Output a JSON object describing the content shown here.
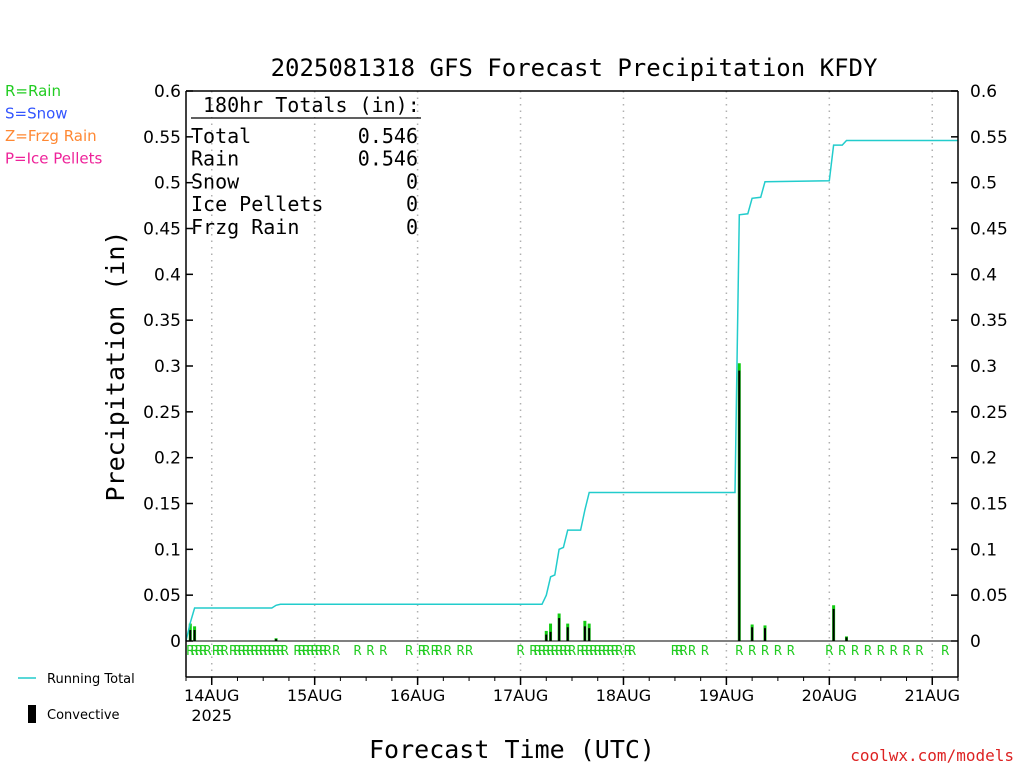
{
  "chart_data": {
    "type": "bar",
    "title": "2025081318 GFS Forecast Precipitation KFDY",
    "xlabel": "Forecast Time (UTC)",
    "ylabel": "Precipitation (in)",
    "ylim": [
      0,
      0.6
    ],
    "y_ticks": [
      "0",
      "0.05",
      "0.1",
      "0.15",
      "0.2",
      "0.25",
      "0.3",
      "0.35",
      "0.4",
      "0.45",
      "0.5",
      "0.55",
      "0.6"
    ],
    "x_ticks": [
      {
        "label": "14AUG",
        "hour": 6
      },
      {
        "label": "15AUG",
        "hour": 30
      },
      {
        "label": "16AUG",
        "hour": 54
      },
      {
        "label": "17AUG",
        "hour": 78
      },
      {
        "label": "18AUG",
        "hour": 102
      },
      {
        "label": "19AUG",
        "hour": 126
      },
      {
        "label": "20AUG",
        "hour": 150
      },
      {
        "label": "21AUG",
        "hour": 174
      }
    ],
    "year_label": "2025",
    "xlim_hours": [
      0,
      180
    ],
    "grid": "vertical dotted at day boundaries",
    "legend": [
      {
        "name": "R=Rain",
        "color": "#22cc22"
      },
      {
        "name": "S=Snow",
        "color": "#3355ff"
      },
      {
        "name": "Z=Frzg Rain",
        "color": "#ff8833"
      },
      {
        "name": "P=Ice Pellets",
        "color": "#ee2299"
      }
    ],
    "line_legend": "Running Total",
    "bar_legend": "Convective",
    "series": [
      {
        "name": "Running Total",
        "color": "#22cccc",
        "points": [
          [
            0,
            0.0
          ],
          [
            1,
            0.02
          ],
          [
            2,
            0.036
          ],
          [
            20,
            0.036
          ],
          [
            21,
            0.039
          ],
          [
            22,
            0.04
          ],
          [
            83,
            0.04
          ],
          [
            84,
            0.05
          ],
          [
            85,
            0.07
          ],
          [
            86,
            0.072
          ],
          [
            87,
            0.1
          ],
          [
            88,
            0.102
          ],
          [
            89,
            0.121
          ],
          [
            92,
            0.121
          ],
          [
            93,
            0.143
          ],
          [
            94,
            0.162
          ],
          [
            128,
            0.162
          ],
          [
            129,
            0.465
          ],
          [
            131,
            0.466
          ],
          [
            132,
            0.483
          ],
          [
            134,
            0.484
          ],
          [
            135,
            0.501
          ],
          [
            150,
            0.502
          ],
          [
            151,
            0.541
          ],
          [
            153,
            0.541
          ],
          [
            154,
            0.546
          ],
          [
            180,
            0.546
          ]
        ]
      },
      {
        "name": "Precipitation",
        "bars": [
          {
            "hour": 1,
            "total": 0.019,
            "conv": 0.012
          },
          {
            "hour": 2,
            "total": 0.016,
            "conv": 0.012
          },
          {
            "hour": 21,
            "total": 0.003,
            "conv": 0.002
          },
          {
            "hour": 84,
            "total": 0.011,
            "conv": 0.007
          },
          {
            "hour": 85,
            "total": 0.019,
            "conv": 0.01
          },
          {
            "hour": 87,
            "total": 0.03,
            "conv": 0.025
          },
          {
            "hour": 89,
            "total": 0.019,
            "conv": 0.015
          },
          {
            "hour": 93,
            "total": 0.022,
            "conv": 0.016
          },
          {
            "hour": 94,
            "total": 0.019,
            "conv": 0.014
          },
          {
            "hour": 129,
            "total": 0.303,
            "conv": 0.295
          },
          {
            "hour": 132,
            "total": 0.018,
            "conv": 0.015
          },
          {
            "hour": 135,
            "total": 0.017,
            "conv": 0.014
          },
          {
            "hour": 151,
            "total": 0.039,
            "conv": 0.035
          },
          {
            "hour": 154,
            "total": 0.005,
            "conv": 0.004
          }
        ]
      }
    ],
    "ptype_marks": {
      "symbol": "R",
      "color": "#22cc22",
      "hours": [
        1,
        2,
        3,
        4,
        5,
        7,
        8,
        9,
        11,
        12,
        13,
        14,
        15,
        16,
        17,
        18,
        19,
        20,
        21,
        22,
        23,
        26,
        27,
        28,
        29,
        30,
        31,
        32,
        33,
        35,
        40,
        43,
        46,
        52,
        55,
        56,
        58,
        59,
        61,
        64,
        66,
        78,
        81,
        82,
        83,
        84,
        85,
        86,
        87,
        88,
        89,
        90,
        92,
        93,
        94,
        95,
        96,
        97,
        98,
        99,
        100,
        101,
        103,
        104,
        114,
        115,
        116,
        118,
        121,
        129,
        132,
        135,
        138,
        141,
        150,
        153,
        156,
        159,
        162,
        165,
        168,
        171,
        177
      ]
    },
    "totals_box": {
      "header": "180hr Totals (in):",
      "rows": [
        {
          "label": "Total",
          "value": "0.546"
        },
        {
          "label": "Rain",
          "value": "0.546"
        },
        {
          "label": "Snow",
          "value": "0"
        },
        {
          "label": "Ice Pellets",
          "value": "0"
        },
        {
          "label": "Frzg Rain",
          "value": "0"
        }
      ]
    },
    "credit": "coolwx.com/models"
  }
}
